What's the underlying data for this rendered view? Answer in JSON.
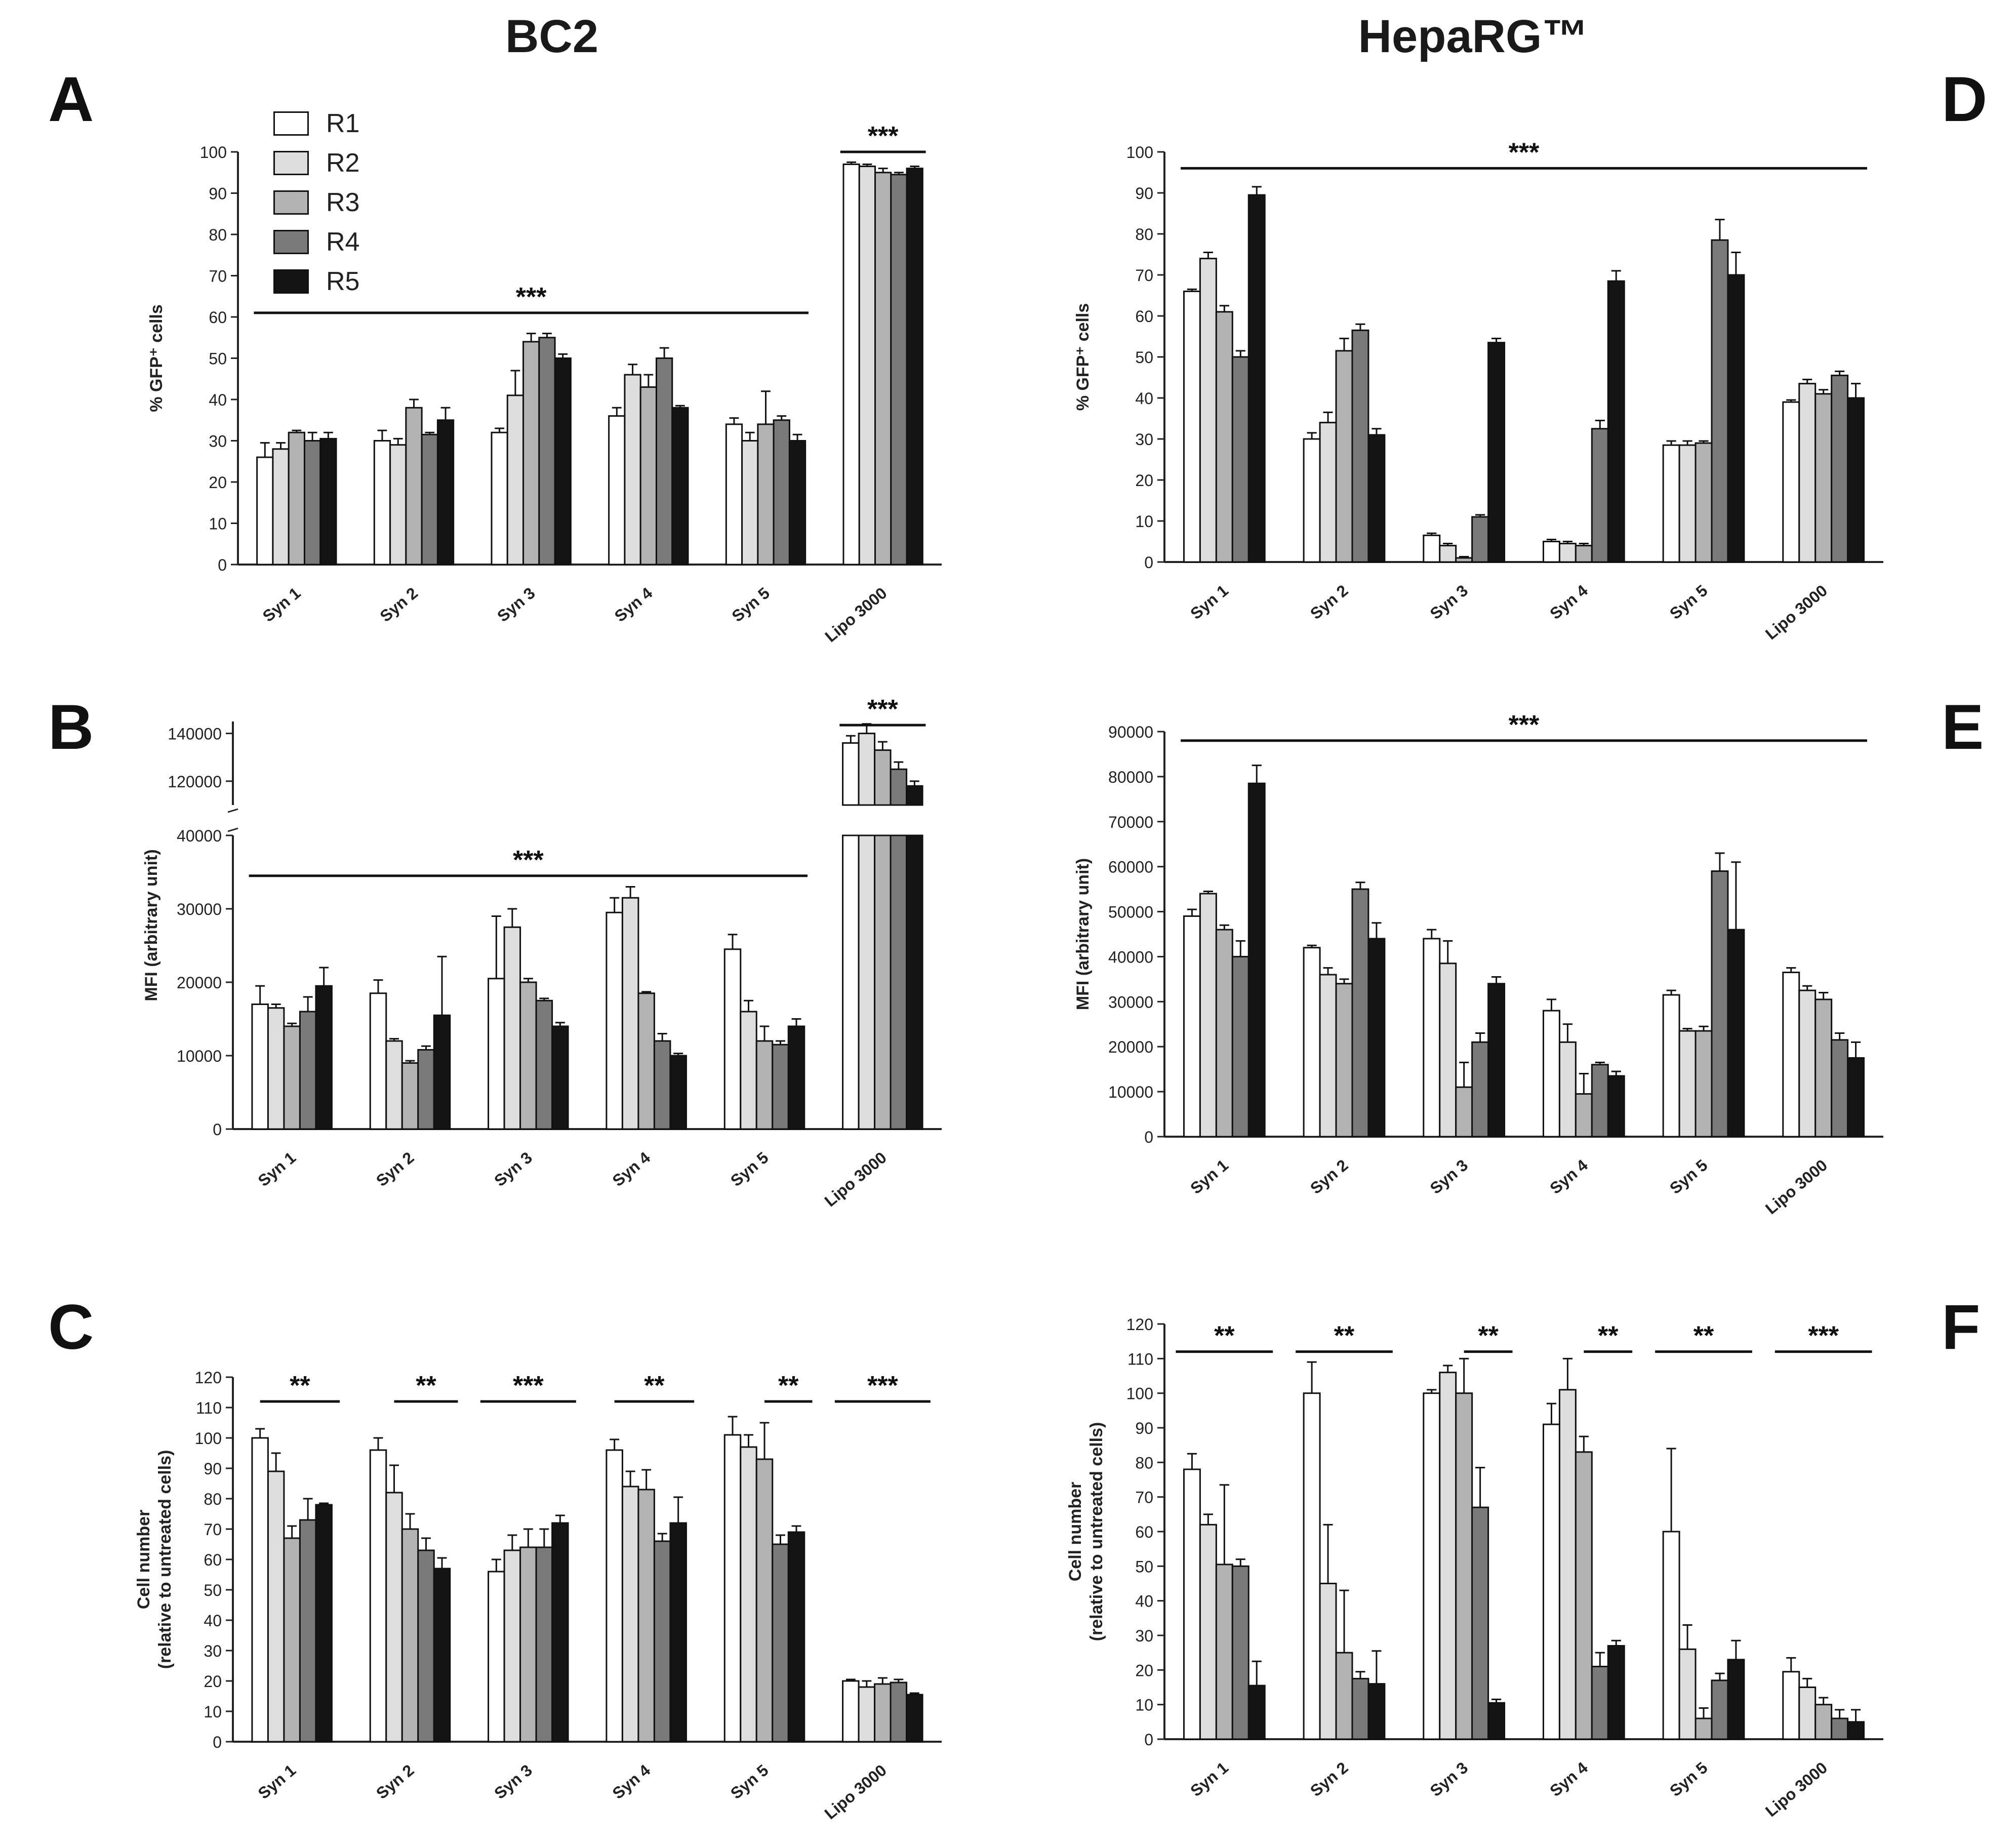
{
  "column_titles": {
    "left": "BC2",
    "right": "HepaRG™"
  },
  "panel_letters": {
    "A": "A",
    "B": "B",
    "C": "C",
    "D": "D",
    "E": "E",
    "F": "F"
  },
  "legend": [
    {
      "label": "R1",
      "color": "#ffffff"
    },
    {
      "label": "R2",
      "color": "#dedede"
    },
    {
      "label": "R3",
      "color": "#b3b3b3"
    },
    {
      "label": "R4",
      "color": "#7a7a7a"
    },
    {
      "label": "R5",
      "color": "#141414"
    }
  ],
  "chart_data": [
    {
      "panel": "A",
      "type": "bar",
      "categories": [
        "Syn 1",
        "Syn 2",
        "Syn 3",
        "Syn 4",
        "Syn 5",
        "Lipo 3000"
      ],
      "ylabel": "% GFP⁺ cells",
      "ylim": [
        0,
        100
      ],
      "yticks": [
        0,
        10,
        20,
        30,
        40,
        50,
        60,
        70,
        80,
        90,
        100
      ],
      "series": [
        {
          "name": "R1",
          "values": [
            26,
            30,
            32,
            36,
            34,
            97
          ],
          "errors": [
            3.5,
            2.5,
            1,
            2,
            1.5,
            0.5
          ]
        },
        {
          "name": "R2",
          "values": [
            28,
            29,
            41,
            46,
            30,
            96.5
          ],
          "errors": [
            1.5,
            1.5,
            6,
            2.5,
            2,
            0.5
          ]
        },
        {
          "name": "R3",
          "values": [
            32,
            38,
            54,
            43,
            34,
            95
          ],
          "errors": [
            0.5,
            2,
            2,
            3,
            8,
            1
          ]
        },
        {
          "name": "R4",
          "values": [
            30,
            31.5,
            55,
            50,
            35,
            94.5
          ],
          "errors": [
            2,
            0.5,
            1,
            2.5,
            1,
            0.5
          ]
        },
        {
          "name": "R5",
          "values": [
            30.5,
            35,
            50,
            38,
            30,
            96
          ],
          "errors": [
            1.5,
            3,
            1,
            0.5,
            1.5,
            0.5
          ]
        }
      ],
      "sig": [
        {
          "label": "***",
          "from": 0,
          "to": 4,
          "level": 61
        },
        {
          "label": "***",
          "from": 5,
          "to": 5,
          "level": 100
        }
      ]
    },
    {
      "panel": "B",
      "type": "bar",
      "broken_axis": true,
      "categories": [
        "Syn 1",
        "Syn 2",
        "Syn 3",
        "Syn 4",
        "Syn 5",
        "Lipo 3000"
      ],
      "ylabel": "MFI (arbitrary unit)",
      "lower_ylim": [
        0,
        40000
      ],
      "lower_yticks": [
        0,
        10000,
        20000,
        30000,
        40000
      ],
      "upper_ylim": [
        110000,
        145000
      ],
      "upper_yticks": [
        120000,
        140000
      ],
      "series": [
        {
          "name": "R1",
          "values": [
            17000,
            18500,
            20500,
            29500,
            24500,
            136000
          ],
          "errors": [
            2500,
            1800,
            8500,
            2000,
            2000,
            3000
          ]
        },
        {
          "name": "R2",
          "values": [
            16500,
            12000,
            27500,
            31500,
            16000,
            140000
          ],
          "errors": [
            500,
            300,
            2500,
            1500,
            1500,
            4000
          ]
        },
        {
          "name": "R3",
          "values": [
            14000,
            9000,
            20000,
            18500,
            12000,
            133000
          ],
          "errors": [
            400,
            300,
            500,
            200,
            2000,
            3500
          ]
        },
        {
          "name": "R4",
          "values": [
            16000,
            10800,
            17500,
            12000,
            11500,
            125000
          ],
          "errors": [
            2000,
            500,
            300,
            1000,
            500,
            3000
          ]
        },
        {
          "name": "R5",
          "values": [
            19500,
            15500,
            14000,
            10000,
            14000,
            118000
          ],
          "errors": [
            2500,
            8000,
            500,
            300,
            1000,
            2000
          ]
        }
      ],
      "sig": [
        {
          "label": "***",
          "from": 0,
          "to": 4,
          "level": 34500
        },
        {
          "label": "***",
          "from": 5,
          "to": 5,
          "level": 143500
        }
      ]
    },
    {
      "panel": "C",
      "type": "bar",
      "categories": [
        "Syn 1",
        "Syn 2",
        "Syn 3",
        "Syn 4",
        "Syn 5",
        "Lipo 3000"
      ],
      "ylabel": [
        "Cell number",
        "(relative to untreated cells)"
      ],
      "ylim": [
        0,
        120
      ],
      "yticks": [
        0,
        10,
        20,
        30,
        40,
        50,
        60,
        70,
        80,
        90,
        100,
        110,
        120
      ],
      "series": [
        {
          "name": "R1",
          "values": [
            100,
            96,
            56,
            96,
            101,
            20
          ],
          "errors": [
            3,
            4,
            4,
            3.5,
            6,
            0.5
          ]
        },
        {
          "name": "R2",
          "values": [
            89,
            82,
            63,
            84,
            97,
            18
          ],
          "errors": [
            6,
            9,
            5,
            5,
            4,
            2
          ]
        },
        {
          "name": "R3",
          "values": [
            67,
            70,
            64,
            83,
            93,
            19
          ],
          "errors": [
            4,
            5,
            6,
            6.5,
            12,
            2
          ]
        },
        {
          "name": "R4",
          "values": [
            73,
            63,
            64,
            66,
            65,
            19.5
          ],
          "errors": [
            7,
            4,
            6,
            2.5,
            3,
            1
          ]
        },
        {
          "name": "R5",
          "values": [
            78,
            57,
            72,
            72,
            69,
            15.5
          ],
          "errors": [
            0.5,
            3.5,
            2.5,
            8.5,
            2,
            0.5
          ]
        }
      ],
      "sig": [
        {
          "label": "**",
          "from": 0,
          "to": 0,
          "seg": [
            1,
            4
          ],
          "level": 112
        },
        {
          "label": "**",
          "from": 1,
          "to": 1,
          "seg": [
            2,
            4
          ],
          "level": 112
        },
        {
          "label": "***",
          "from": 2,
          "to": 2,
          "seg": [
            0,
            4
          ],
          "level": 112
        },
        {
          "label": "**",
          "from": 3,
          "to": 3,
          "seg": [
            1,
            4
          ],
          "level": 112
        },
        {
          "label": "**",
          "from": 4,
          "to": 4,
          "seg": [
            3,
            4
          ],
          "level": 112
        },
        {
          "label": "***",
          "from": 5,
          "to": 5,
          "seg": [
            0,
            4
          ],
          "level": 112
        }
      ]
    },
    {
      "panel": "D",
      "type": "bar",
      "categories": [
        "Syn 1",
        "Syn 2",
        "Syn 3",
        "Syn 4",
        "Syn 5",
        "Lipo 3000"
      ],
      "ylabel": "% GFP⁺ cells",
      "ylim": [
        0,
        100
      ],
      "yticks": [
        0,
        10,
        20,
        30,
        40,
        50,
        60,
        70,
        80,
        90,
        100
      ],
      "series": [
        {
          "name": "R1",
          "values": [
            66,
            30,
            6.5,
            5,
            28.5,
            39
          ],
          "errors": [
            0.5,
            1.5,
            0.5,
            0.5,
            1,
            0.5
          ]
        },
        {
          "name": "R2",
          "values": [
            74,
            34,
            4,
            4.5,
            28.5,
            43.5
          ],
          "errors": [
            1.5,
            2.5,
            0.5,
            0.5,
            1,
            1
          ]
        },
        {
          "name": "R3",
          "values": [
            61,
            51.5,
            1,
            4,
            29,
            41
          ],
          "errors": [
            1.5,
            3,
            0.3,
            0.5,
            0.5,
            1
          ]
        },
        {
          "name": "R4",
          "values": [
            50,
            56.5,
            11,
            32.5,
            78.5,
            45.5
          ],
          "errors": [
            1.5,
            1.5,
            0.5,
            2,
            5,
            1
          ]
        },
        {
          "name": "R5",
          "values": [
            89.5,
            31,
            53.5,
            68.5,
            70,
            40
          ],
          "errors": [
            2,
            1.5,
            1,
            2.5,
            5.5,
            3.5
          ]
        }
      ],
      "sig": [
        {
          "label": "***",
          "from": 0,
          "to": 5,
          "level": 96
        }
      ]
    },
    {
      "panel": "E",
      "type": "bar",
      "categories": [
        "Syn 1",
        "Syn 2",
        "Syn 3",
        "Syn 4",
        "Syn 5",
        "Lipo 3000"
      ],
      "ylabel": "MFI (arbitrary unit)",
      "ylim": [
        0,
        90000
      ],
      "yticks": [
        0,
        10000,
        20000,
        30000,
        40000,
        50000,
        60000,
        70000,
        80000,
        90000
      ],
      "series": [
        {
          "name": "R1",
          "values": [
            49000,
            42000,
            44000,
            28000,
            31500,
            36500
          ],
          "errors": [
            1500,
            500,
            2000,
            2500,
            1000,
            1000
          ]
        },
        {
          "name": "R2",
          "values": [
            54000,
            36000,
            38500,
            21000,
            23500,
            32500
          ],
          "errors": [
            500,
            1500,
            5000,
            4000,
            500,
            1000
          ]
        },
        {
          "name": "R3",
          "values": [
            46000,
            34000,
            11000,
            9500,
            23500,
            30500
          ],
          "errors": [
            1000,
            1000,
            5500,
            4500,
            1000,
            1500
          ]
        },
        {
          "name": "R4",
          "values": [
            40000,
            55000,
            21000,
            16000,
            59000,
            21500
          ],
          "errors": [
            3500,
            1500,
            2000,
            500,
            4000,
            1500
          ]
        },
        {
          "name": "R5",
          "values": [
            78500,
            44000,
            34000,
            13500,
            46000,
            17500
          ],
          "errors": [
            4000,
            3500,
            1500,
            1000,
            15000,
            3500
          ]
        }
      ],
      "sig": [
        {
          "label": "***",
          "from": 0,
          "to": 5,
          "level": 88000
        }
      ]
    },
    {
      "panel": "F",
      "type": "bar",
      "categories": [
        "Syn 1",
        "Syn 2",
        "Syn 3",
        "Syn 4",
        "Syn 5",
        "Lipo 3000"
      ],
      "ylabel": [
        "Cell number",
        "(relative to untreated cells)"
      ],
      "ylim": [
        0,
        120
      ],
      "yticks": [
        0,
        10,
        20,
        30,
        40,
        50,
        60,
        70,
        80,
        90,
        100,
        110,
        120
      ],
      "series": [
        {
          "name": "R1",
          "values": [
            78,
            100,
            100,
            91,
            60,
            19.5
          ],
          "errors": [
            4.5,
            9,
            1,
            6,
            24,
            4
          ]
        },
        {
          "name": "R2",
          "values": [
            62,
            45,
            106,
            101,
            26,
            15
          ],
          "errors": [
            3,
            17,
            2,
            9,
            7,
            2.5
          ]
        },
        {
          "name": "R3",
          "values": [
            50.5,
            25,
            100,
            83,
            6,
            10
          ],
          "errors": [
            23,
            18,
            10,
            4.5,
            3,
            2
          ]
        },
        {
          "name": "R4",
          "values": [
            50,
            17.5,
            67,
            21,
            17,
            6
          ],
          "errors": [
            2,
            2,
            11.5,
            4,
            2,
            2.5
          ]
        },
        {
          "name": "R5",
          "values": [
            15.5,
            16,
            10.5,
            27,
            23,
            5
          ],
          "errors": [
            7,
            9.5,
            1,
            1.5,
            5.5,
            3.5
          ]
        }
      ],
      "sig": [
        {
          "label": "**",
          "from": 0,
          "to": 0,
          "seg": [
            0,
            4
          ],
          "level": 112
        },
        {
          "label": "**",
          "from": 1,
          "to": 1,
          "seg": [
            0,
            4
          ],
          "level": 112
        },
        {
          "label": "**",
          "from": 2,
          "to": 2,
          "seg": [
            3,
            4
          ],
          "level": 112
        },
        {
          "label": "**",
          "from": 3,
          "to": 3,
          "seg": [
            3,
            4
          ],
          "level": 112
        },
        {
          "label": "**",
          "from": 4,
          "to": 4,
          "seg": [
            0,
            4
          ],
          "level": 112
        },
        {
          "label": "***",
          "from": 5,
          "to": 5,
          "seg": [
            0,
            4
          ],
          "level": 112
        }
      ]
    }
  ]
}
